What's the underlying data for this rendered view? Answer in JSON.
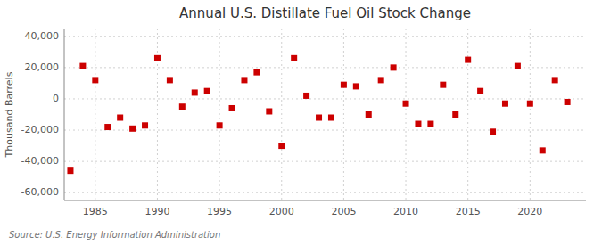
{
  "chart_data": {
    "type": "scatter",
    "title": "Annual U.S. Distillate Fuel Oil Stock Change",
    "ylabel": "Thousand Barrels",
    "annotation": "Source: U.S. Energy Information Administration",
    "x": [
      1983,
      1984,
      1985,
      1986,
      1987,
      1988,
      1989,
      1990,
      1991,
      1992,
      1993,
      1994,
      1995,
      1996,
      1997,
      1998,
      1999,
      2000,
      2001,
      2002,
      2003,
      2004,
      2005,
      2006,
      2007,
      2008,
      2009,
      2010,
      2011,
      2012,
      2013,
      2014,
      2015,
      2016,
      2017,
      2018,
      2019,
      2020,
      2021,
      2022,
      2023
    ],
    "values": [
      -46000,
      21000,
      12000,
      -18000,
      -12000,
      -19000,
      -17000,
      26000,
      12000,
      -5000,
      4000,
      5000,
      -17000,
      -6000,
      12000,
      17000,
      -8000,
      -30000,
      26000,
      2000,
      -12000,
      -12000,
      9000,
      8000,
      -10000,
      12000,
      20000,
      -3000,
      -16000,
      -16000,
      9000,
      -10000,
      25000,
      5000,
      -21000,
      -3000,
      21000,
      -3000,
      -33000,
      12000,
      -2000
    ],
    "color": "#cc0000",
    "marker": "square",
    "xlim": [
      1982.5,
      2024.5
    ],
    "xticks": [
      1985,
      1990,
      1995,
      2000,
      2005,
      2010,
      2015,
      2020
    ],
    "ylim": [
      -65000,
      45000
    ],
    "yticks": [
      {
        "value": -60000,
        "label": "-60,000"
      },
      {
        "value": -40000,
        "label": "-40,000"
      },
      {
        "value": -20000,
        "label": "-20,000"
      },
      0,
      {
        "value": 20000,
        "label": "20,000"
      },
      {
        "value": 40000,
        "label": "40,000"
      }
    ],
    "grid": true
  }
}
